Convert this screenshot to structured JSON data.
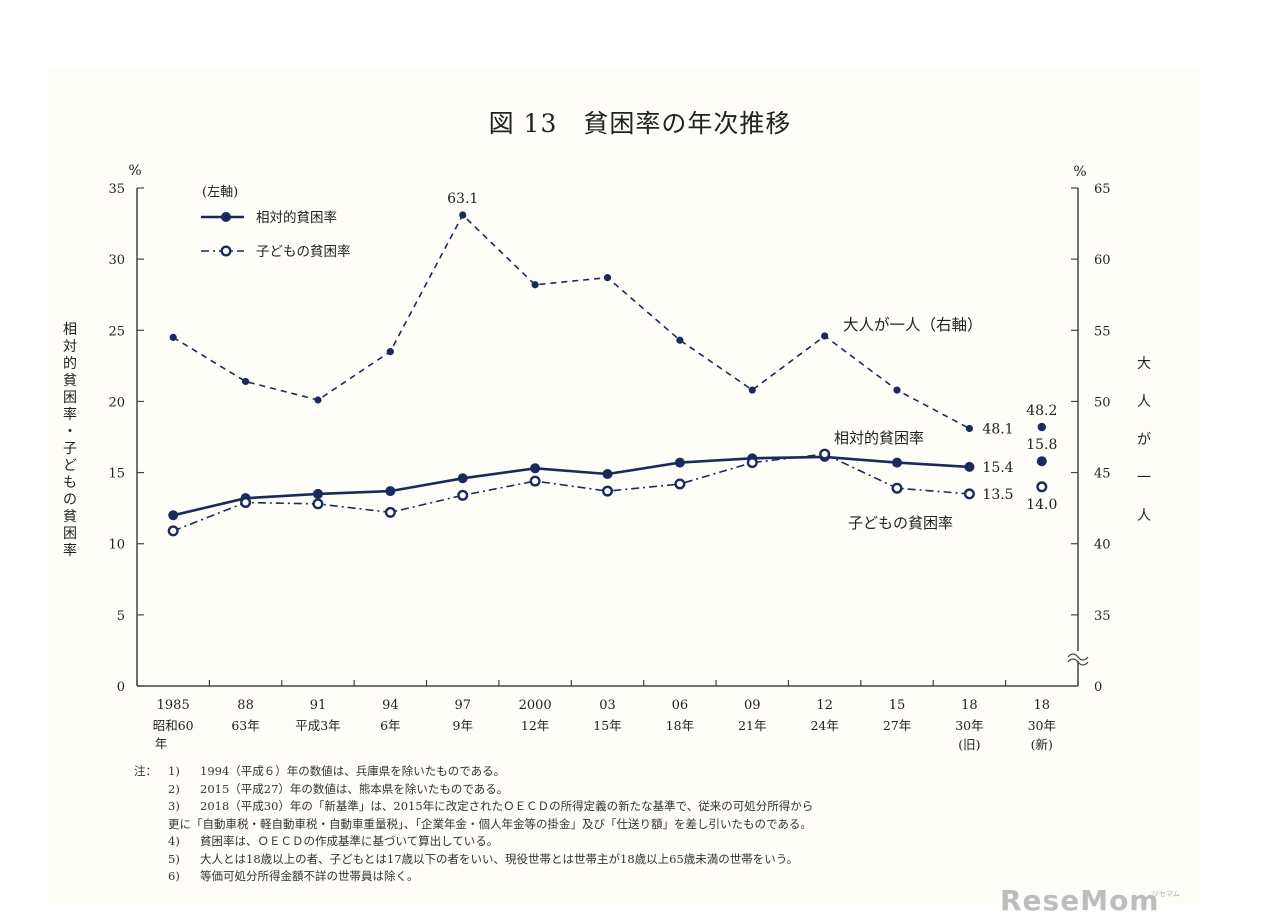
{
  "chart_data": {
    "type": "line",
    "title": "図 13　貧困率の年次推移",
    "categories": [
      {
        "year": "1985",
        "era": "昭和60年"
      },
      {
        "year": "88",
        "era": "63年"
      },
      {
        "year": "91",
        "era": "平成3年"
      },
      {
        "year": "94",
        "era": "6年"
      },
      {
        "year": "97",
        "era": "9年"
      },
      {
        "year": "2000",
        "era": "12年"
      },
      {
        "year": "03",
        "era": "15年"
      },
      {
        "year": "06",
        "era": "18年"
      },
      {
        "year": "09",
        "era": "21年"
      },
      {
        "year": "12",
        "era": "24年"
      },
      {
        "year": "15",
        "era": "27年"
      },
      {
        "year": "18",
        "era": "30年",
        "era2": "(旧)"
      },
      {
        "year": "18",
        "era": "30年",
        "era2": "(新)"
      }
    ],
    "left_axis": {
      "unit": "%",
      "min": 0,
      "max": 35,
      "ticks": [
        0,
        5,
        10,
        15,
        20,
        25,
        30,
        35
      ],
      "label": "相対的貧困率・子どもの貧困率"
    },
    "right_axis": {
      "unit": "%",
      "break_min": 0,
      "min": 30,
      "max": 65,
      "ticks": [
        35,
        40,
        45,
        50,
        55,
        60,
        65
      ],
      "zero_label": "0",
      "label": "大人が一人"
    },
    "legend": {
      "header": "(左軸)",
      "position": "top-left"
    },
    "series": [
      {
        "name": "相対的貧困率",
        "axis": "left",
        "style": "solid",
        "marker": "filled",
        "values": [
          12.0,
          13.2,
          13.5,
          13.7,
          14.6,
          15.3,
          14.9,
          15.7,
          16.0,
          16.1,
          15.7,
          15.4,
          15.8
        ],
        "connect_last": false,
        "label": "相対的貧困率"
      },
      {
        "name": "子どもの貧困率",
        "axis": "left",
        "style": "dashdot",
        "marker": "open",
        "values": [
          10.9,
          12.9,
          12.8,
          12.2,
          13.4,
          14.4,
          13.7,
          14.2,
          15.7,
          16.3,
          13.9,
          13.5,
          14.0
        ],
        "connect_last": false,
        "label": "子どもの貧困率"
      },
      {
        "name": "大人が一人",
        "axis": "right",
        "style": "dashed",
        "marker": "diamond",
        "values": [
          54.5,
          51.4,
          50.1,
          53.5,
          63.1,
          58.2,
          58.7,
          54.3,
          50.8,
          54.6,
          50.8,
          48.1,
          48.2
        ],
        "connect_last": false,
        "label": "大人が一人（右軸）"
      }
    ],
    "data_labels": [
      {
        "series": 2,
        "index": 4,
        "text": "63.1",
        "pos": "above"
      },
      {
        "series": 2,
        "index": 11,
        "text": "48.1",
        "pos": "right"
      },
      {
        "series": 2,
        "index": 12,
        "text": "48.2",
        "pos": "above"
      },
      {
        "series": 0,
        "index": 11,
        "text": "15.4",
        "pos": "right"
      },
      {
        "series": 0,
        "index": 12,
        "text": "15.8",
        "pos": "above"
      },
      {
        "series": 1,
        "index": 11,
        "text": "13.5",
        "pos": "right"
      },
      {
        "series": 1,
        "index": 12,
        "text": "14.0",
        "pos": "below"
      }
    ],
    "colors": {
      "line": "#1a2a5c",
      "axis": "#444444",
      "text": "#222222"
    }
  },
  "notes": {
    "prefix": "注：",
    "items": [
      {
        "num": "1)",
        "text": "1994（平成６）年の数値は、兵庫県を除いたものである。"
      },
      {
        "num": "2)",
        "text": "2015（平成27）年の数値は、熊本県を除いたものである。"
      },
      {
        "num": "3)",
        "text": "2018（平成30）年の「新基準」は、2015年に改定されたＯＥＣＤの所得定義の新たな基準で、従来の可処分所得から",
        "cont": "更に「自動車税・軽自動車税・自動車重量税」、「企業年金・個人年金等の掛金」及び「仕送り額」を差し引いたものである。"
      },
      {
        "num": "4)",
        "text": "貧困率は、ＯＥＣＤの作成基準に基づいて算出している。"
      },
      {
        "num": "5)",
        "text": "大人とは18歳以上の者、子どもとは17歳以下の者をいい、現役世帯とは世帯主が18歳以上65歳未満の世帯をいう。"
      },
      {
        "num": "6)",
        "text": "等価可処分所得金額不詳の世帯員は除く。"
      }
    ]
  },
  "watermark": "ReseMom",
  "watermark_small": "リセマム"
}
